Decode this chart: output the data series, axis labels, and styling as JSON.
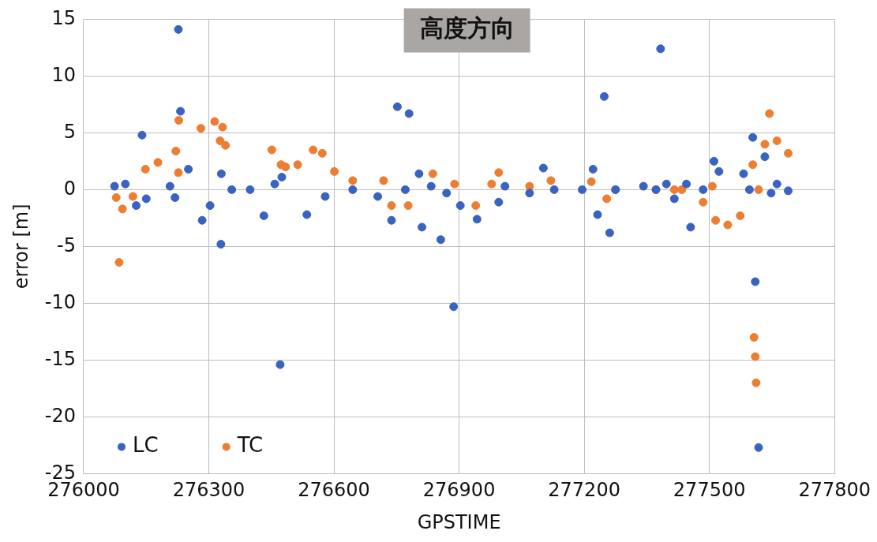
{
  "chart_data": {
    "type": "scatter",
    "title": "高度方向",
    "xlabel": "GPSTIME",
    "ylabel": "error [m]",
    "xlim": [
      276000,
      277800
    ],
    "xticks": [
      276000,
      276300,
      276600,
      276900,
      277200,
      277500,
      277800
    ],
    "ylim": [
      -25,
      15
    ],
    "yticks": [
      -25,
      -20,
      -15,
      -10,
      -5,
      0,
      5,
      10,
      15
    ],
    "grid": true,
    "legend": "bottom left",
    "marker": "circle",
    "series": [
      {
        "name": "LC",
        "color": "#3a62c0",
        "x": [
          276074,
          276100,
          276126,
          276140,
          276150,
          276207,
          276219,
          276227,
          276232,
          276251,
          276284,
          276303,
          276329,
          276330,
          276355,
          276399,
          276432,
          276458,
          276471,
          276475,
          276535,
          276579,
          276645,
          276705,
          276738,
          276752,
          276771,
          276780,
          276804,
          276811,
          276833,
          276856,
          276870,
          276887,
          276903,
          276943,
          276995,
          277010,
          277069,
          277102,
          277128,
          277195,
          277221,
          277232,
          277248,
          277261,
          277275,
          277342,
          277372,
          277383,
          277397,
          277416,
          277445,
          277455,
          277485,
          277511,
          277523,
          277582,
          277596,
          277604,
          277610,
          277618,
          277633,
          277648,
          277662,
          277689
        ],
        "values": [
          0.3,
          0.5,
          -1.4,
          4.8,
          -0.8,
          0.3,
          -0.7,
          14.1,
          6.9,
          1.8,
          -2.7,
          -1.4,
          -4.8,
          1.4,
          0,
          0,
          -2.3,
          0.5,
          -15.4,
          1.1,
          -2.2,
          -0.6,
          0,
          -0.6,
          -2.7,
          7.3,
          0,
          6.7,
          1.4,
          -3.3,
          0.3,
          -4.4,
          -0.3,
          -10.3,
          -1.4,
          -2.6,
          -1.1,
          0.3,
          -0.3,
          1.9,
          0,
          0,
          1.8,
          -2.2,
          8.2,
          -3.8,
          0,
          0.3,
          0,
          12.4,
          0.5,
          -0.8,
          0.5,
          -3.3,
          0,
          2.5,
          1.6,
          1.4,
          0,
          4.6,
          -8.1,
          -22.7,
          2.9,
          -0.3,
          0.5,
          -0.1
        ]
      },
      {
        "name": "TC",
        "color": "#ed7d31",
        "x": [
          276078,
          276085,
          276093,
          276118,
          276148,
          276178,
          276221,
          276227,
          276228,
          276281,
          276314,
          276327,
          276333,
          276340,
          276451,
          276473,
          276484,
          276513,
          276550,
          276572,
          276601,
          276645,
          276719,
          276738,
          276778,
          276837,
          276889,
          276940,
          276978,
          276995,
          277069,
          277120,
          277217,
          277254,
          277275,
          277372,
          277416,
          277434,
          277485,
          277507,
          277515,
          277544,
          277574,
          277604,
          277607,
          277610,
          277612,
          277618,
          277633,
          277644,
          277662,
          277689
        ],
        "values": [
          -0.7,
          -6.4,
          -1.7,
          -0.6,
          1.8,
          2.4,
          3.4,
          1.5,
          6.1,
          5.4,
          6.0,
          4.3,
          5.5,
          3.9,
          3.5,
          2.2,
          2.0,
          2.2,
          3.5,
          3.2,
          1.6,
          0.8,
          0.8,
          -1.4,
          -1.4,
          1.4,
          0.5,
          -1.4,
          0.5,
          1.5,
          0.3,
          0.8,
          0.7,
          -0.8,
          0,
          0,
          0,
          0,
          -1.1,
          0.3,
          -2.7,
          -3.1,
          -2.3,
          2.2,
          -13.0,
          -14.7,
          -17.0,
          0,
          4.0,
          6.7,
          4.3,
          3.2
        ]
      }
    ]
  }
}
